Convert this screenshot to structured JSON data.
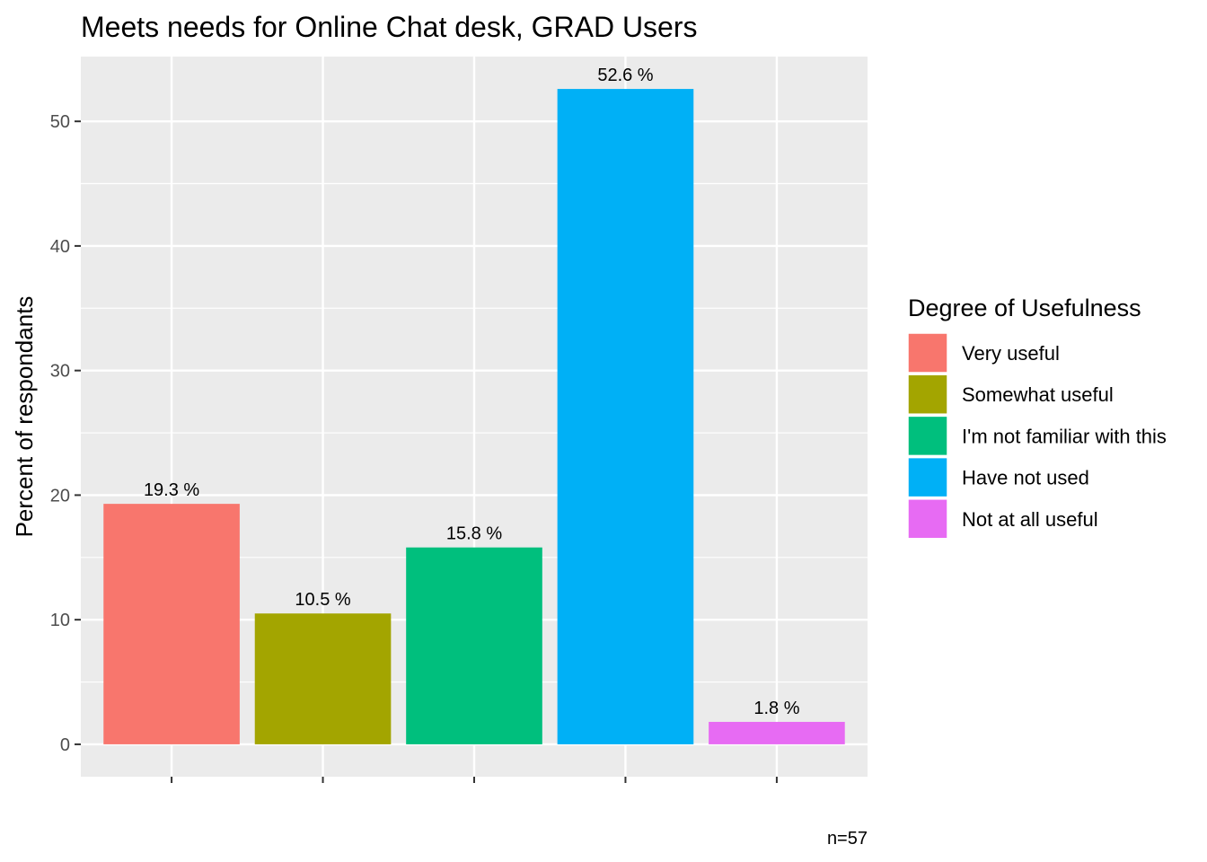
{
  "chart_data": {
    "type": "bar",
    "title": "Meets needs for Online Chat desk,  GRAD Users",
    "xlabel": "",
    "ylabel": "Percent of respondants",
    "caption": "n=57",
    "ylim": [
      -2.6,
      55.2
    ],
    "yticks": [
      0,
      10,
      20,
      30,
      40,
      50
    ],
    "grid": true,
    "legend": {
      "title": "Degree of Usefulness",
      "position": "right"
    },
    "categories": [
      "Very useful",
      "Somewhat useful",
      "I'm not familiar with this",
      "Have not used",
      "Not at all useful"
    ],
    "values": [
      19.3,
      10.5,
      15.8,
      52.6,
      1.8
    ],
    "value_labels": [
      "19.3 %",
      "10.5 %",
      "15.8 %",
      "52.6 %",
      "1.8 %"
    ],
    "colors": [
      "#F8766D",
      "#A3A500",
      "#00BF7D",
      "#00B0F6",
      "#E76BF3"
    ],
    "panel_background": "#EBEBEB",
    "grid_color": "#FFFFFF"
  }
}
